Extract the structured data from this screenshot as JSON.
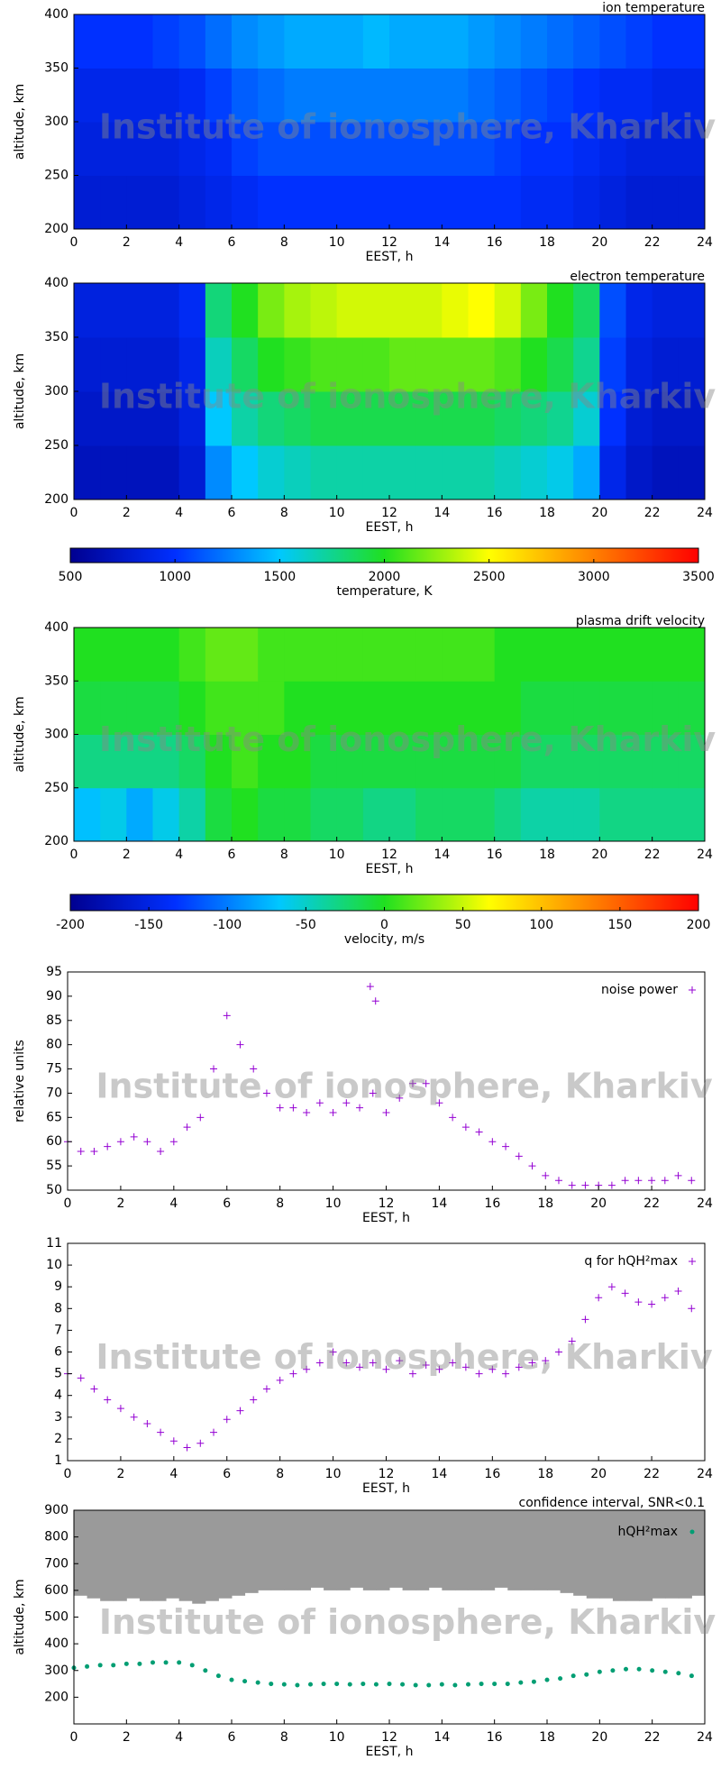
{
  "chart_data": [
    {
      "type": "heatmap",
      "title": "ion temperature",
      "xlabel": "EEST, h",
      "ylabel": "altitude, km",
      "watermark": "Institute of ionosphere, Kharkiv",
      "xlim": [
        0,
        24
      ],
      "xticks": [
        0,
        2,
        4,
        6,
        8,
        10,
        12,
        14,
        16,
        18,
        20,
        22,
        24
      ],
      "ylim": [
        200,
        400
      ],
      "yticks": [
        200,
        250,
        300,
        350,
        400
      ],
      "zlim": [
        500,
        3500
      ],
      "colormap": [
        "#000090",
        "#0030ff",
        "#00c8ff",
        "#20e020",
        "#ffff00",
        "#ff8000",
        "#ff0000"
      ],
      "x": [
        0.5,
        1.5,
        2.5,
        3.5,
        4.5,
        5.5,
        6.5,
        7.5,
        8.5,
        9.5,
        10.5,
        11.5,
        12.5,
        13.5,
        14.5,
        15.5,
        16.5,
        17.5,
        18.5,
        19.5,
        20.5,
        21.5,
        22.5,
        23.5
      ],
      "y": [
        225,
        275,
        325,
        375
      ],
      "z": [
        [
          800,
          800,
          800,
          800,
          850,
          900,
          950,
          1000,
          1000,
          1000,
          1000,
          1000,
          1000,
          1000,
          1000,
          1000,
          1000,
          950,
          950,
          900,
          850,
          800,
          800,
          800
        ],
        [
          850,
          850,
          850,
          850,
          900,
          950,
          1050,
          1100,
          1100,
          1100,
          1100,
          1100,
          1100,
          1100,
          1100,
          1100,
          1050,
          1000,
          1000,
          950,
          900,
          850,
          850,
          850
        ],
        [
          900,
          900,
          900,
          900,
          950,
          1050,
          1150,
          1200,
          1250,
          1250,
          1250,
          1250,
          1250,
          1250,
          1250,
          1200,
          1150,
          1100,
          1050,
          1000,
          950,
          950,
          900,
          900
        ],
        [
          1000,
          1000,
          1000,
          1050,
          1100,
          1200,
          1300,
          1350,
          1400,
          1400,
          1400,
          1450,
          1400,
          1400,
          1400,
          1350,
          1300,
          1250,
          1200,
          1150,
          1100,
          1050,
          1000,
          1000
        ]
      ]
    },
    {
      "type": "heatmap",
      "title": "electron temperature",
      "xlabel": "EEST, h",
      "ylabel": "altitude, km",
      "watermark": "Institute of ionosphere, Kharkiv",
      "xlim": [
        0,
        24
      ],
      "xticks": [
        0,
        2,
        4,
        6,
        8,
        10,
        12,
        14,
        16,
        18,
        20,
        22,
        24
      ],
      "ylim": [
        200,
        400
      ],
      "yticks": [
        200,
        250,
        300,
        350,
        400
      ],
      "zlim": [
        500,
        3500
      ],
      "colormap": [
        "#000090",
        "#0030ff",
        "#00c8ff",
        "#20e020",
        "#ffff00",
        "#ff8000",
        "#ff0000"
      ],
      "colorbar": {
        "label": "temperature, K",
        "ticks": [
          500,
          1000,
          1500,
          2000,
          2500,
          3000,
          3500
        ]
      },
      "x": [
        0.5,
        1.5,
        2.5,
        3.5,
        4.5,
        5.5,
        6.5,
        7.5,
        8.5,
        9.5,
        10.5,
        11.5,
        12.5,
        13.5,
        14.5,
        15.5,
        16.5,
        17.5,
        18.5,
        19.5,
        20.5,
        21.5,
        22.5,
        23.5
      ],
      "y": [
        225,
        275,
        325,
        375
      ],
      "z": [
        [
          700,
          700,
          700,
          700,
          800,
          1300,
          1500,
          1600,
          1650,
          1700,
          1700,
          1700,
          1700,
          1700,
          1700,
          1700,
          1650,
          1600,
          1550,
          1400,
          900,
          750,
          700,
          700
        ],
        [
          750,
          750,
          750,
          750,
          850,
          1500,
          1700,
          1800,
          1850,
          1900,
          1900,
          1900,
          1900,
          1900,
          1900,
          1900,
          1850,
          1800,
          1750,
          1600,
          1000,
          800,
          750,
          750
        ],
        [
          800,
          800,
          800,
          800,
          900,
          1650,
          1850,
          2000,
          2050,
          2100,
          2100,
          2100,
          2150,
          2150,
          2150,
          2150,
          2100,
          2000,
          1900,
          1750,
          1050,
          850,
          800,
          800
        ],
        [
          850,
          850,
          850,
          850,
          950,
          1800,
          2000,
          2200,
          2300,
          2350,
          2400,
          2400,
          2400,
          2400,
          2450,
          2500,
          2400,
          2200,
          2000,
          1850,
          1100,
          900,
          850,
          850
        ]
      ]
    },
    {
      "type": "heatmap",
      "title": "plasma drift velocity",
      "xlabel": "EEST, h",
      "ylabel": "altitude, km",
      "watermark": "Institute of ionosphere, Kharkiv",
      "xlim": [
        0,
        24
      ],
      "xticks": [
        0,
        2,
        4,
        6,
        8,
        10,
        12,
        14,
        16,
        18,
        20,
        22,
        24
      ],
      "ylim": [
        200,
        400
      ],
      "yticks": [
        200,
        250,
        300,
        350,
        400
      ],
      "zlim": [
        -200,
        200
      ],
      "colormap": [
        "#000090",
        "#0030ff",
        "#00c8ff",
        "#20e020",
        "#ffff00",
        "#ff8000",
        "#ff0000"
      ],
      "colorbar": {
        "label": "velocity, m/s",
        "ticks": [
          -200,
          -150,
          -100,
          -50,
          0,
          50,
          100,
          150,
          200
        ]
      },
      "x": [
        0.5,
        1.5,
        2.5,
        3.5,
        4.5,
        5.5,
        6.5,
        7.5,
        8.5,
        9.5,
        10.5,
        11.5,
        12.5,
        13.5,
        14.5,
        15.5,
        16.5,
        17.5,
        18.5,
        19.5,
        20.5,
        21.5,
        22.5,
        23.5
      ],
      "y": [
        225,
        275,
        325,
        375
      ],
      "z": [
        [
          -70,
          -60,
          -80,
          -60,
          -40,
          -10,
          0,
          -10,
          -10,
          -20,
          -20,
          -30,
          -30,
          -20,
          -20,
          -20,
          -30,
          -40,
          -40,
          -40,
          -30,
          -30,
          -30,
          -30
        ],
        [
          -30,
          -30,
          -30,
          -30,
          -20,
          0,
          10,
          0,
          0,
          -10,
          -10,
          -10,
          -10,
          -10,
          -10,
          -10,
          -10,
          -20,
          -20,
          -20,
          -20,
          -20,
          -20,
          -20
        ],
        [
          -10,
          -10,
          -10,
          -10,
          0,
          10,
          10,
          10,
          0,
          0,
          0,
          0,
          0,
          0,
          0,
          0,
          0,
          -10,
          -10,
          -10,
          -10,
          -10,
          -10,
          -10
        ],
        [
          0,
          0,
          0,
          0,
          10,
          20,
          20,
          10,
          10,
          10,
          10,
          10,
          10,
          10,
          10,
          10,
          0,
          0,
          0,
          0,
          0,
          0,
          0,
          0
        ]
      ]
    },
    {
      "type": "scatter",
      "xlabel": "EEST, h",
      "ylabel": "relative units",
      "watermark": "Institute of ionosphere, Kharkiv",
      "xlim": [
        0,
        24
      ],
      "xticks": [
        0,
        2,
        4,
        6,
        8,
        10,
        12,
        14,
        16,
        18,
        20,
        22,
        24
      ],
      "ylim": [
        50,
        95
      ],
      "yticks": [
        50,
        55,
        60,
        65,
        70,
        75,
        80,
        85,
        90,
        95
      ],
      "series": [
        {
          "name": "noise power",
          "color": "#9400d3",
          "x": [
            0,
            0.5,
            1,
            1.5,
            2,
            2.5,
            3,
            3.5,
            4,
            4.5,
            5,
            5.5,
            6,
            6.5,
            7,
            7.5,
            8,
            8.5,
            9,
            9.5,
            10,
            10.5,
            11,
            11.5,
            12,
            12.5,
            13,
            13.5,
            14,
            14.5,
            15,
            15.5,
            16,
            16.5,
            17,
            17.5,
            18,
            18.5,
            19,
            19.5,
            20,
            20.5,
            21,
            21.5,
            22,
            22.5,
            23,
            23.5,
            11.4,
            11.6
          ],
          "values": [
            60,
            58,
            58,
            59,
            60,
            61,
            60,
            58,
            60,
            63,
            65,
            75,
            86,
            80,
            75,
            70,
            67,
            67,
            66,
            68,
            66,
            68,
            67,
            70,
            66,
            69,
            72,
            72,
            68,
            65,
            63,
            62,
            60,
            59,
            57,
            55,
            53,
            52,
            51,
            51,
            51,
            51,
            52,
            52,
            52,
            52,
            53,
            52,
            92,
            89
          ]
        }
      ]
    },
    {
      "type": "scatter",
      "watermark": "Institute of ionosphere, Kharkiv",
      "xlabel": "EEST, h",
      "xlim": [
        0,
        24
      ],
      "xticks": [
        0,
        2,
        4,
        6,
        8,
        10,
        12,
        14,
        16,
        18,
        20,
        22,
        24
      ],
      "ylim": [
        1,
        11
      ],
      "yticks": [
        1,
        2,
        3,
        4,
        5,
        6,
        7,
        8,
        9,
        10,
        11
      ],
      "series": [
        {
          "name": "q for hQH²max",
          "color": "#9400d3",
          "x": [
            0,
            0.5,
            1,
            1.5,
            2,
            2.5,
            3,
            3.5,
            4,
            4.5,
            5,
            5.5,
            6,
            6.5,
            7,
            7.5,
            8,
            8.5,
            9,
            9.5,
            10,
            10.5,
            11,
            11.5,
            12,
            12.5,
            13,
            13.5,
            14,
            14.5,
            15,
            15.5,
            16,
            16.5,
            17,
            17.5,
            18,
            18.5,
            19,
            19.5,
            20,
            20.5,
            21,
            21.5,
            22,
            22.5,
            23,
            23.5
          ],
          "values": [
            5,
            4.8,
            4.3,
            3.8,
            3.4,
            3,
            2.7,
            2.3,
            1.9,
            1.6,
            1.8,
            2.3,
            2.9,
            3.3,
            3.8,
            4.3,
            4.7,
            5,
            5.2,
            5.5,
            6,
            5.5,
            5.3,
            5.5,
            5.2,
            5.6,
            5,
            5.4,
            5.2,
            5.5,
            5.3,
            5,
            5.2,
            5,
            5.3,
            5.5,
            5.6,
            6,
            6.5,
            7.5,
            8.5,
            9,
            8.7,
            8.3,
            8.2,
            8.5,
            8.8,
            8
          ]
        }
      ]
    },
    {
      "type": "interval-scatter",
      "xlabel": "EEST, h",
      "ylabel": "altitude, km",
      "watermark": "Institute of ionosphere, Kharkiv",
      "xlim": [
        0,
        24
      ],
      "xticks": [
        0,
        2,
        4,
        6,
        8,
        10,
        12,
        14,
        16,
        18,
        20,
        22,
        24
      ],
      "ylim": [
        100,
        900
      ],
      "yticks": [
        200,
        300,
        400,
        500,
        600,
        700,
        800,
        900
      ],
      "x": [
        0,
        0.5,
        1,
        1.5,
        2,
        2.5,
        3,
        3.5,
        4,
        4.5,
        5,
        5.5,
        6,
        6.5,
        7,
        7.5,
        8,
        8.5,
        9,
        9.5,
        10,
        10.5,
        11,
        11.5,
        12,
        12.5,
        13,
        13.5,
        14,
        14.5,
        15,
        15.5,
        16,
        16.5,
        17,
        17.5,
        18,
        18.5,
        19,
        19.5,
        20,
        20.5,
        21,
        21.5,
        22,
        22.5,
        23,
        23.5
      ],
      "interval": {
        "name": "confidence interval, SNR<0.1",
        "color": "#9a9a9a",
        "low": [
          580,
          570,
          560,
          560,
          570,
          560,
          560,
          570,
          560,
          550,
          560,
          570,
          580,
          590,
          600,
          600,
          600,
          600,
          610,
          600,
          600,
          610,
          600,
          600,
          610,
          600,
          600,
          610,
          600,
          600,
          600,
          600,
          610,
          600,
          600,
          600,
          600,
          590,
          580,
          570,
          570,
          560,
          560,
          560,
          570,
          570,
          570,
          580
        ],
        "high": [
          900,
          900,
          900,
          900,
          900,
          900,
          900,
          900,
          900,
          900,
          900,
          900,
          900,
          900,
          900,
          900,
          900,
          900,
          900,
          900,
          900,
          900,
          900,
          900,
          900,
          900,
          900,
          900,
          900,
          900,
          900,
          900,
          900,
          900,
          900,
          900,
          900,
          900,
          900,
          900,
          900,
          900,
          900,
          900,
          900,
          900,
          900,
          900
        ]
      },
      "series": [
        {
          "name": "hQH²max",
          "color": "#009e73",
          "values": [
            310,
            315,
            320,
            320,
            325,
            325,
            330,
            330,
            330,
            320,
            300,
            280,
            265,
            260,
            255,
            250,
            248,
            245,
            248,
            250,
            250,
            248,
            250,
            248,
            250,
            248,
            245,
            245,
            248,
            245,
            248,
            250,
            250,
            250,
            255,
            258,
            265,
            270,
            280,
            285,
            295,
            300,
            305,
            305,
            300,
            295,
            290,
            280
          ]
        }
      ]
    }
  ]
}
